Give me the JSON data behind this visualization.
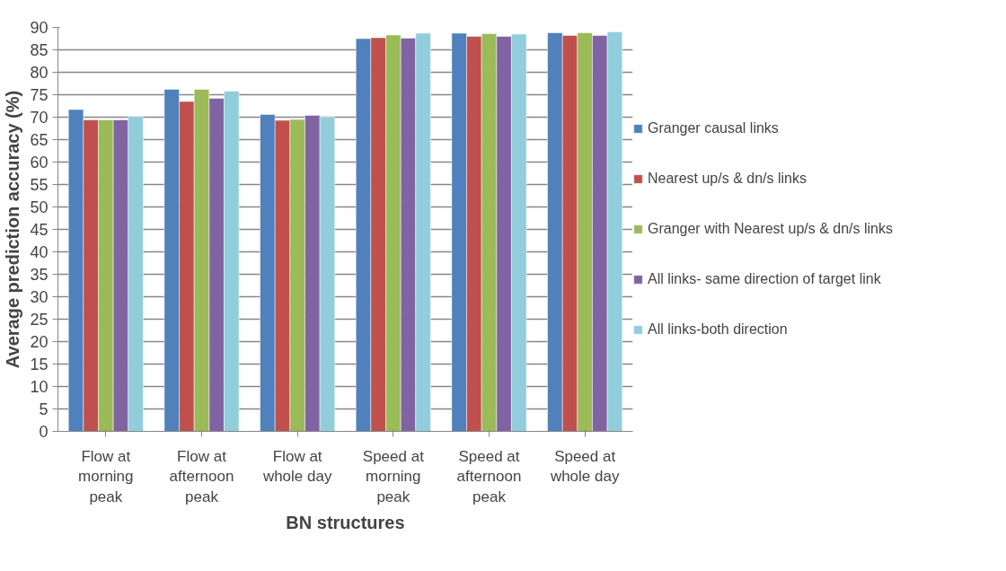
{
  "chart_data": {
    "type": "bar",
    "xlabel": "BN structures",
    "ylabel": "Average prediction accuracy (%)",
    "categories": [
      "Flow at morning peak",
      "Flow at afternoon peak",
      "Flow at whole day",
      "Speed at morning peak",
      "Speed at afternoon peak",
      "Speed at whole day"
    ],
    "series": [
      {
        "name": "Granger causal links",
        "color": "#4f81bd",
        "values": [
          71.7,
          76.2,
          70.6,
          87.5,
          88.7,
          88.8
        ]
      },
      {
        "name": "Nearest up/s & dn/s links",
        "color": "#c0504d",
        "values": [
          69.4,
          73.5,
          69.3,
          87.7,
          88.0,
          88.2
        ]
      },
      {
        "name": "Granger with Nearest up/s & dn/s links",
        "color": "#9bbb59",
        "values": [
          69.4,
          76.2,
          69.5,
          88.3,
          88.6,
          88.8
        ]
      },
      {
        "name": "All links- same direction of target link",
        "color": "#8064a2",
        "values": [
          69.4,
          74.2,
          70.4,
          87.6,
          88.0,
          88.2
        ]
      },
      {
        "name": "All links-both direction",
        "color": "#92cddc",
        "values": [
          70.2,
          75.8,
          70.0,
          88.7,
          88.5,
          89.0
        ]
      }
    ],
    "ylim": [
      0,
      90
    ],
    "yticks": [
      0,
      5,
      10,
      15,
      20,
      25,
      30,
      35,
      40,
      45,
      50,
      55,
      60,
      65,
      70,
      75,
      80,
      85,
      90
    ],
    "grid": "y",
    "legend": "right"
  }
}
